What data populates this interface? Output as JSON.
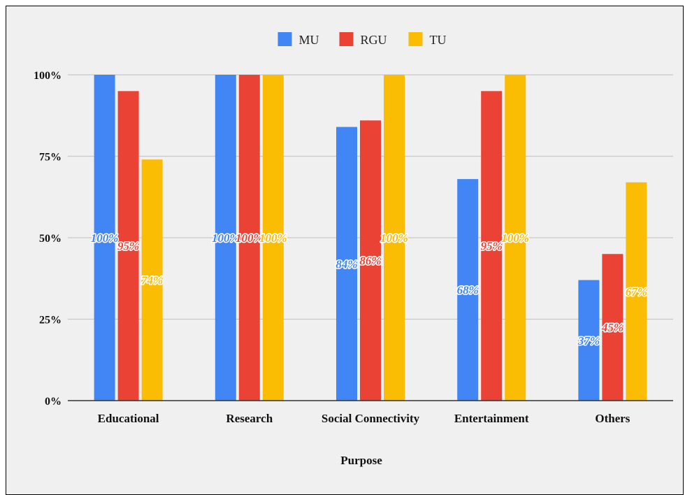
{
  "chart_data": {
    "type": "bar",
    "categories": [
      "Educational",
      "Research",
      "Social Connectivity",
      "Entertainment",
      "Others"
    ],
    "series": [
      {
        "name": "MU",
        "color": "#4285f4",
        "values": [
          100,
          100,
          84,
          68,
          37
        ],
        "labels": [
          "100%",
          "100%",
          "84%",
          "68%",
          "37%"
        ]
      },
      {
        "name": "RGU",
        "color": "#ea4335",
        "values": [
          95,
          100,
          86,
          95,
          45
        ],
        "labels": [
          "95%",
          "100%",
          "86%",
          "95%",
          "45%"
        ]
      },
      {
        "name": "TU",
        "color": "#fbbc04",
        "values": [
          74,
          100,
          100,
          100,
          67
        ],
        "labels": [
          "74%",
          "100%",
          "100%",
          "100%",
          "67%"
        ]
      }
    ],
    "title": "",
    "xlabel": "Purpose",
    "ylabel": "",
    "ylim": [
      0,
      100
    ],
    "yticks": [
      "0%",
      "25%",
      "50%",
      "75%",
      "100%"
    ],
    "grid": true,
    "legend": "top-center"
  }
}
